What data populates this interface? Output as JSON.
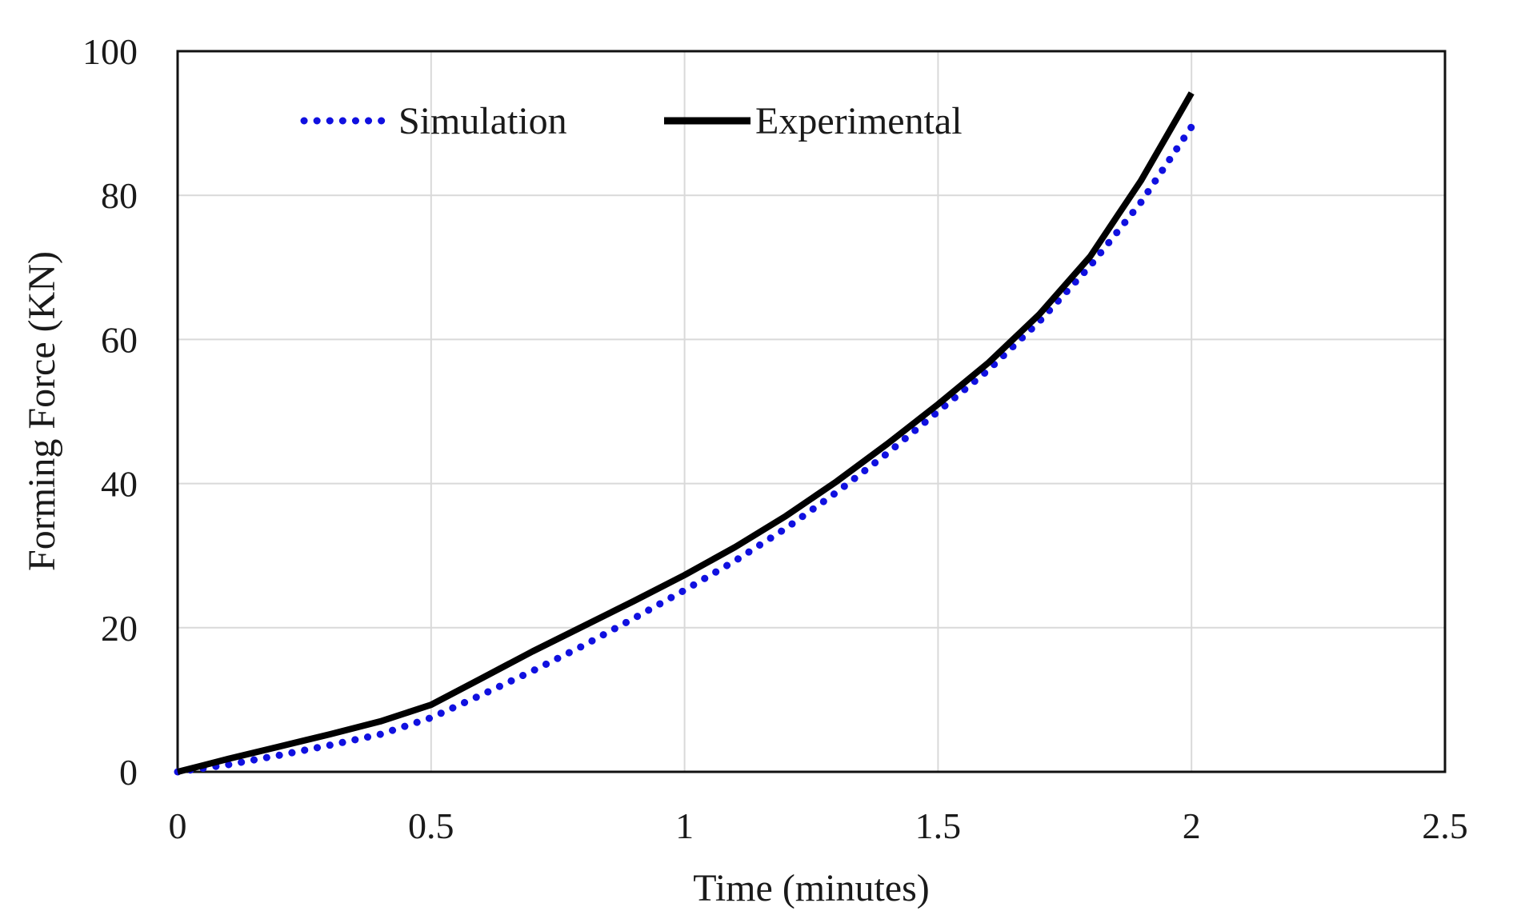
{
  "chart_data": {
    "type": "line",
    "title": "",
    "xlabel": "Time (minutes)",
    "ylabel": "Forming Force (KN)",
    "xlim": [
      0,
      2.5
    ],
    "ylim": [
      0,
      100
    ],
    "x_ticks": [
      0,
      0.5,
      1,
      1.5,
      2,
      2.5
    ],
    "x_tick_labels": [
      "0",
      "0.5",
      "1",
      "1.5",
      "2",
      "2.5"
    ],
    "y_ticks": [
      0,
      20,
      40,
      60,
      80,
      100
    ],
    "y_tick_labels": [
      "0",
      "20",
      "40",
      "60",
      "80",
      "100"
    ],
    "grid": true,
    "legend_position": "top-left",
    "series": [
      {
        "name": "Simulation",
        "style": "dotted",
        "color": "#1010e0",
        "x": [
          0,
          0.1,
          0.2,
          0.3,
          0.4,
          0.5,
          0.6,
          0.7,
          0.8,
          0.9,
          1.0,
          1.1,
          1.2,
          1.3,
          1.4,
          1.5,
          1.6,
          1.7,
          1.8,
          1.9,
          2.0
        ],
        "y": [
          0,
          1,
          2.3,
          3.7,
          5.2,
          7.5,
          10.7,
          14,
          17.5,
          21.3,
          25.2,
          29.3,
          33.8,
          38.8,
          44.2,
          50,
          55.8,
          62.5,
          70.2,
          79,
          89.5
        ]
      },
      {
        "name": "Experimental",
        "style": "solid",
        "color": "#000000",
        "x": [
          0,
          0.1,
          0.2,
          0.3,
          0.4,
          0.5,
          0.6,
          0.7,
          0.8,
          0.9,
          1.0,
          1.1,
          1.2,
          1.3,
          1.4,
          1.5,
          1.6,
          1.7,
          1.8,
          1.9,
          2.0
        ],
        "y": [
          0,
          1.8,
          3.5,
          5.2,
          7,
          9.3,
          13,
          16.7,
          20.2,
          23.7,
          27.3,
          31.2,
          35.5,
          40.3,
          45.5,
          51,
          56.8,
          63.5,
          71.5,
          82,
          94.2
        ]
      }
    ]
  }
}
